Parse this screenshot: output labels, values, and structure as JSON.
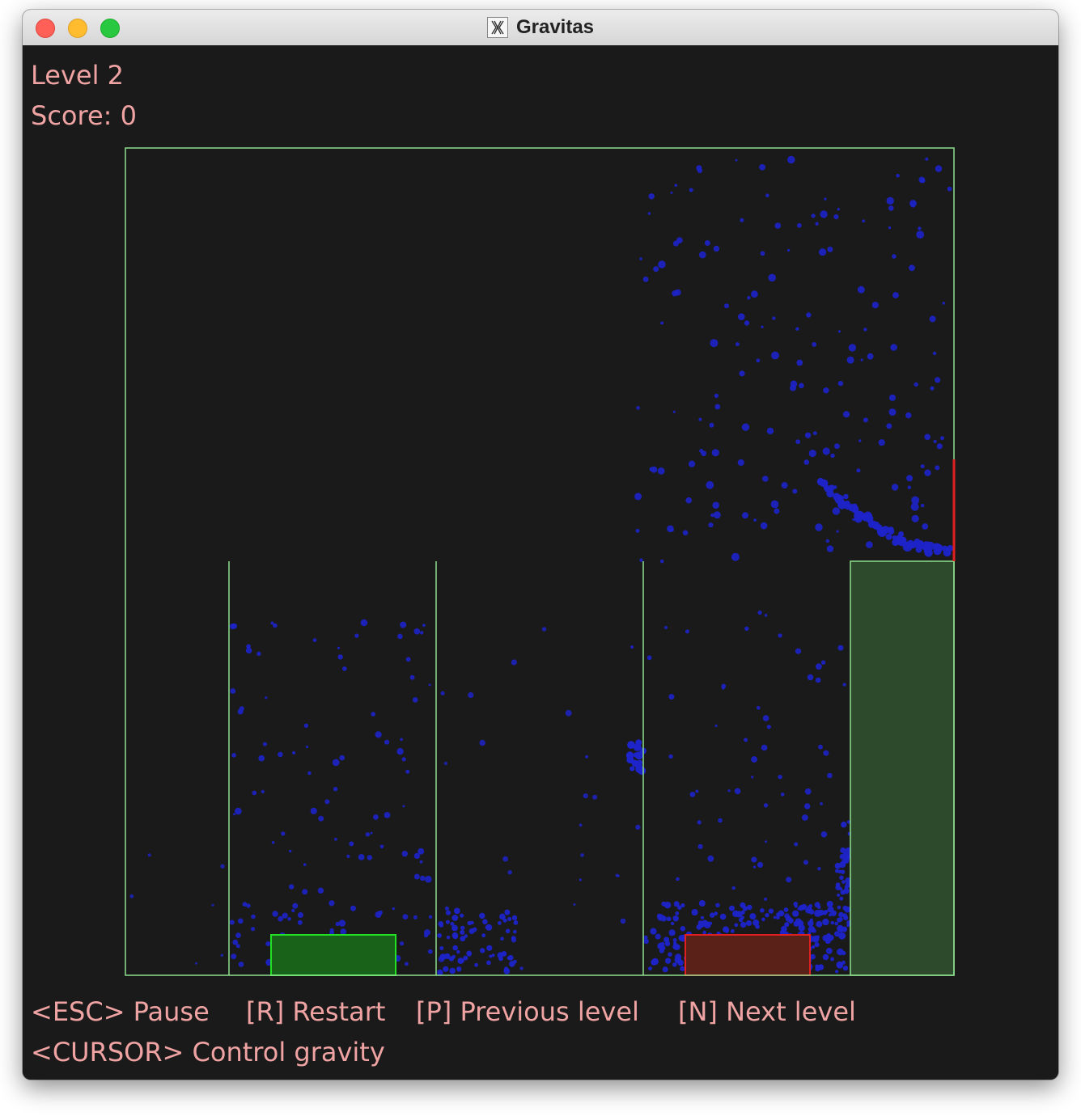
{
  "window": {
    "title": "Gravitas"
  },
  "icons": {
    "app": "x11-icon",
    "close": "close-button",
    "minimize": "minimize-button",
    "maximize": "zoom-button"
  },
  "hud": {
    "level": "Level 2",
    "score": "Score: 0"
  },
  "controls": {
    "pause": "<ESC> Pause",
    "restart": "[R] Restart",
    "previous": "[P] Previous level",
    "next": "[N] Next level",
    "gravity": "<CURSOR> Control gravity"
  },
  "colors": {
    "background": "#1a1a1a",
    "text": "#f0a3a3",
    "walls": "#8ee08e",
    "particles": "#1d24c9",
    "goal_fill": "#18621a",
    "goal_border": "#22e022",
    "hazard_fill": "#5a2119",
    "hazard_border": "#e02020",
    "platform_fill": "#2d4a2d",
    "exit_marker": "#e02020"
  }
}
